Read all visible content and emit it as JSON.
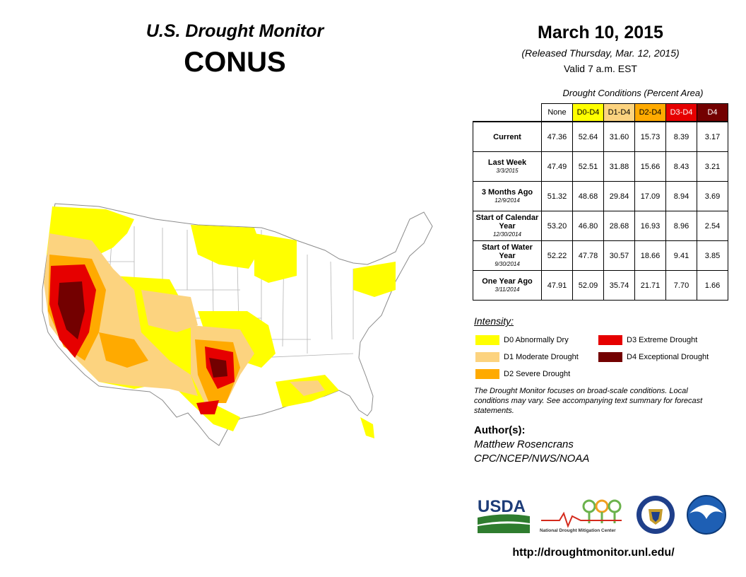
{
  "header": {
    "product": "U.S. Drought Monitor",
    "region": "CONUS",
    "date": "March 10, 2015",
    "released": "(Released Thursday, Mar. 12, 2015)",
    "valid": "Valid 7 a.m. EST"
  },
  "table": {
    "caption": "Drought Conditions (Percent Area)",
    "columns": [
      {
        "label": "None",
        "color": "#ffffff",
        "text_color": "#000000"
      },
      {
        "label": "D0-D4",
        "color": "#ffff00",
        "text_color": "#000000"
      },
      {
        "label": "D1-D4",
        "color": "#fcd37f",
        "text_color": "#000000"
      },
      {
        "label": "D2-D4",
        "color": "#ffaa00",
        "text_color": "#000000"
      },
      {
        "label": "D3-D4",
        "color": "#e60000",
        "text_color": "#ffffff"
      },
      {
        "label": "D4",
        "color": "#730000",
        "text_color": "#ffffff"
      }
    ],
    "rows": [
      {
        "label": "Current",
        "sub": "",
        "values": [
          "47.36",
          "52.64",
          "31.60",
          "15.73",
          "8.39",
          "3.17"
        ]
      },
      {
        "label": "Last Week",
        "sub": "3/3/2015",
        "values": [
          "47.49",
          "52.51",
          "31.88",
          "15.66",
          "8.43",
          "3.21"
        ]
      },
      {
        "label": "3 Months Ago",
        "sub": "12/9/2014",
        "values": [
          "51.32",
          "48.68",
          "29.84",
          "17.09",
          "8.94",
          "3.69"
        ]
      },
      {
        "label": "Start of Calendar Year",
        "sub": "12/30/2014",
        "values": [
          "53.20",
          "46.80",
          "28.68",
          "16.93",
          "8.96",
          "2.54"
        ]
      },
      {
        "label": "Start of Water Year",
        "sub": "9/30/2014",
        "values": [
          "52.22",
          "47.78",
          "30.57",
          "18.66",
          "9.41",
          "3.85"
        ]
      },
      {
        "label": "One Year Ago",
        "sub": "3/11/2014",
        "values": [
          "47.91",
          "52.09",
          "35.74",
          "21.71",
          "7.70",
          "1.66"
        ]
      }
    ]
  },
  "legend": {
    "title": "Intensity:",
    "items": [
      {
        "label": "D0 Abnormally Dry",
        "color": "#ffff00"
      },
      {
        "label": "D1 Moderate Drought",
        "color": "#fcd37f"
      },
      {
        "label": "D2 Severe Drought",
        "color": "#ffaa00"
      },
      {
        "label": "D3 Extreme Drought",
        "color": "#e60000"
      },
      {
        "label": "D4 Exceptional Drought",
        "color": "#730000"
      }
    ]
  },
  "note": "The Drought Monitor focuses on broad-scale conditions. Local conditions may vary. See accompanying text summary for forecast statements.",
  "author": {
    "title": "Author(s):",
    "name": "Matthew Rosencrans",
    "org": "CPC/NCEP/NWS/NOAA"
  },
  "logos": {
    "usda": "USDA",
    "ndmc": "National Drought Mitigation Center"
  },
  "url": "http://droughtmonitor.unl.edu/"
}
